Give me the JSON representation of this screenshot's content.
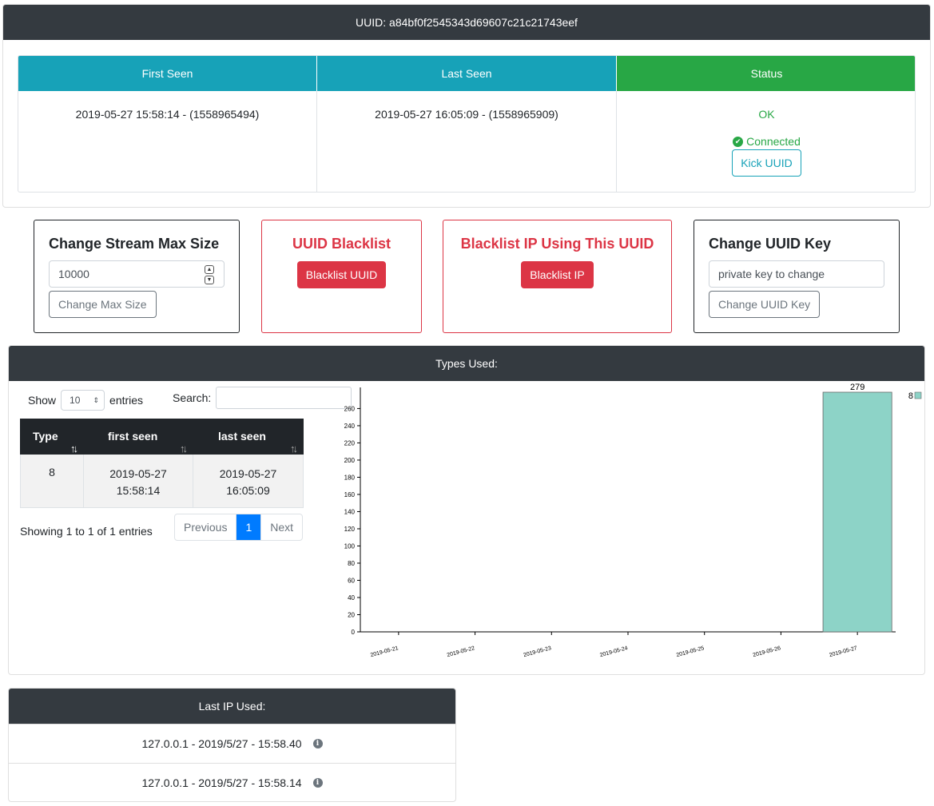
{
  "uuid_header": "UUID: a84bf0f2545343d69607c21c21743eef",
  "info_table": {
    "headers": [
      "First Seen",
      "Last Seen",
      "Status"
    ],
    "first_seen": "2019-05-27 15:58:14 - (1558965494)",
    "last_seen": "2019-05-27 16:05:09 - (1558965909)",
    "status": "OK",
    "connected": "Connected",
    "kick_label": "Kick UUID"
  },
  "stream_box": {
    "title": "Change Stream Max Size",
    "value": "10000",
    "button": "Change Max Size"
  },
  "blacklist_uuid_box": {
    "title": "UUID Blacklist",
    "button": "Blacklist UUID"
  },
  "blacklist_ip_box": {
    "title": "Blacklist IP Using This UUID",
    "button": "Blacklist IP"
  },
  "uuid_key_box": {
    "title": "Change UUID Key",
    "placeholder": "private key to change",
    "button": "Change UUID Key"
  },
  "types_card": {
    "header": "Types Used:",
    "show_label": "Show",
    "entries_value": "10",
    "entries_label": "entries",
    "search_label": "Search:",
    "columns": [
      "Type",
      "first seen",
      "last seen"
    ],
    "rows": [
      {
        "type": "8",
        "first_date": "2019-05-27",
        "first_time": "15:58:14",
        "last_date": "2019-05-27",
        "last_time": "16:05:09"
      }
    ],
    "info": "Showing 1 to 1 of 1 entries",
    "pager": {
      "previous": "Previous",
      "page": "1",
      "next": "Next"
    }
  },
  "chart_data": {
    "type": "bar",
    "categories": [
      "2019-05-21",
      "2019-05-22",
      "2019-05-23",
      "2019-05-24",
      "2019-05-25",
      "2019-05-26",
      "2019-05-27"
    ],
    "series": [
      {
        "name": "8",
        "values": [
          0,
          0,
          0,
          0,
          0,
          0,
          279
        ],
        "color": "#8dd3c7"
      }
    ],
    "yticks": [
      0,
      20,
      40,
      60,
      80,
      100,
      120,
      140,
      160,
      180,
      200,
      220,
      240,
      260
    ],
    "ylim": [
      0,
      279
    ],
    "data_labels": [
      "",
      "",
      "",
      "",
      "",
      "",
      "279"
    ],
    "legend": "top-right"
  },
  "ip_card": {
    "header": "Last IP Used:",
    "entries": [
      "127.0.0.1 - 2019/5/27 - 15:58.40",
      "127.0.0.1 - 2019/5/27 - 15:58.14"
    ]
  }
}
